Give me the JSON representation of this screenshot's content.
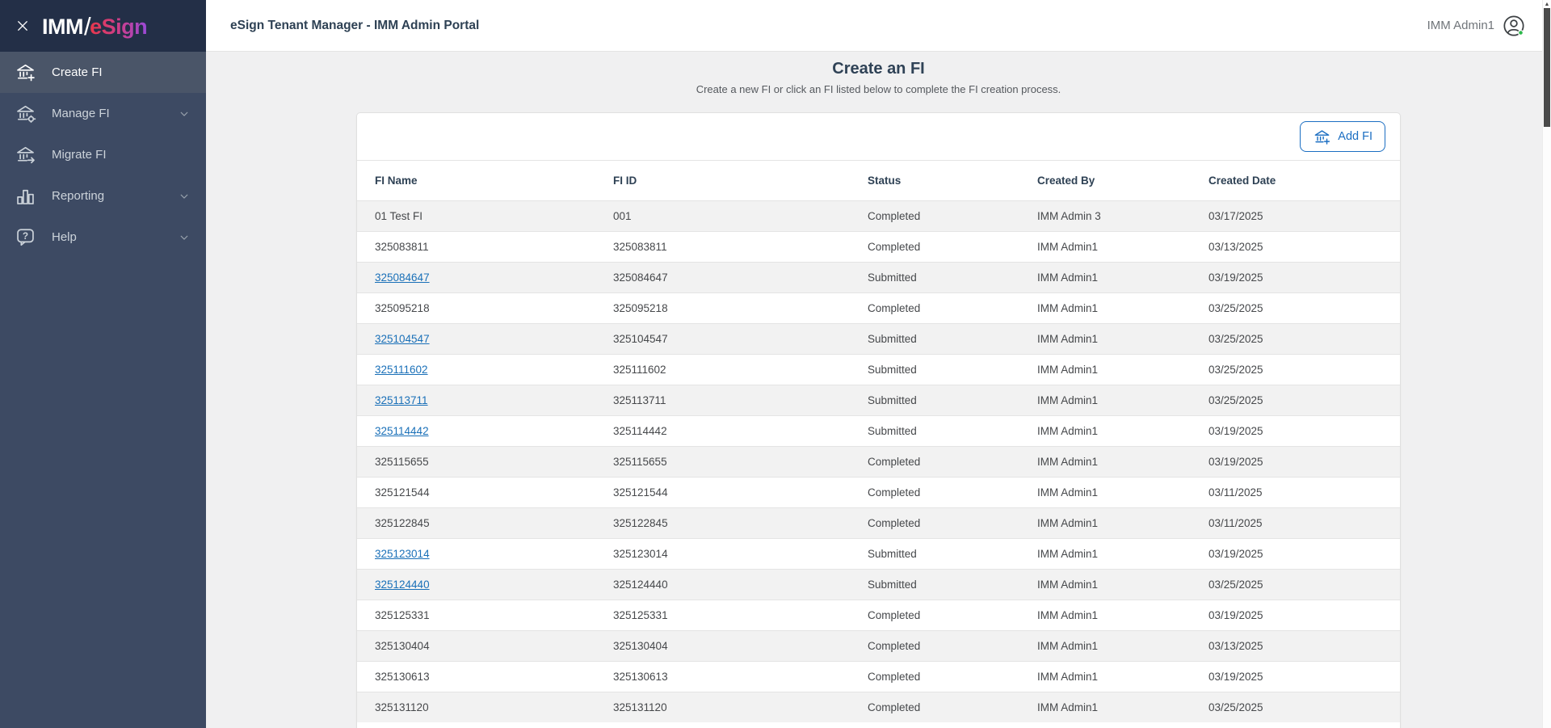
{
  "sidebar": {
    "logo": {
      "imm": "IMM",
      "slash": "/",
      "esign": "eSign"
    },
    "items": [
      {
        "label": "Create FI",
        "icon": "bank-plus-icon",
        "active": true,
        "expandable": false
      },
      {
        "label": "Manage FI",
        "icon": "bank-gear-icon",
        "active": false,
        "expandable": true
      },
      {
        "label": "Migrate FI",
        "icon": "bank-arrow-icon",
        "active": false,
        "expandable": false
      },
      {
        "label": "Reporting",
        "icon": "bar-chart-icon",
        "active": false,
        "expandable": true
      },
      {
        "label": "Help",
        "icon": "help-bubble-icon",
        "active": false,
        "expandable": true
      }
    ]
  },
  "header": {
    "title": "eSign Tenant Manager - IMM Admin Portal",
    "user_name": "IMM Admin1"
  },
  "main": {
    "page_title": "Create an FI",
    "page_subtitle": "Create a new FI or click an FI listed below to complete the FI creation process.",
    "add_fi_button": "Add FI",
    "table": {
      "columns": [
        "FI Name",
        "FI ID",
        "Status",
        "Created By",
        "Created Date"
      ],
      "rows": [
        {
          "fi_name": "01 Test FI",
          "fi_id": "001",
          "status": "Completed",
          "created_by": "IMM Admin 3",
          "created_date": "03/17/2025",
          "link": false
        },
        {
          "fi_name": "325083811",
          "fi_id": "325083811",
          "status": "Completed",
          "created_by": "IMM Admin1",
          "created_date": "03/13/2025",
          "link": false
        },
        {
          "fi_name": "325084647",
          "fi_id": "325084647",
          "status": "Submitted",
          "created_by": "IMM Admin1",
          "created_date": "03/19/2025",
          "link": true
        },
        {
          "fi_name": "325095218",
          "fi_id": "325095218",
          "status": "Completed",
          "created_by": "IMM Admin1",
          "created_date": "03/25/2025",
          "link": false
        },
        {
          "fi_name": "325104547",
          "fi_id": "325104547",
          "status": "Submitted",
          "created_by": "IMM Admin1",
          "created_date": "03/25/2025",
          "link": true
        },
        {
          "fi_name": "325111602",
          "fi_id": "325111602",
          "status": "Submitted",
          "created_by": "IMM Admin1",
          "created_date": "03/25/2025",
          "link": true
        },
        {
          "fi_name": "325113711",
          "fi_id": "325113711",
          "status": "Submitted",
          "created_by": "IMM Admin1",
          "created_date": "03/25/2025",
          "link": true
        },
        {
          "fi_name": "325114442",
          "fi_id": "325114442",
          "status": "Submitted",
          "created_by": "IMM Admin1",
          "created_date": "03/19/2025",
          "link": true
        },
        {
          "fi_name": "325115655",
          "fi_id": "325115655",
          "status": "Completed",
          "created_by": "IMM Admin1",
          "created_date": "03/19/2025",
          "link": false
        },
        {
          "fi_name": "325121544",
          "fi_id": "325121544",
          "status": "Completed",
          "created_by": "IMM Admin1",
          "created_date": "03/11/2025",
          "link": false
        },
        {
          "fi_name": "325122845",
          "fi_id": "325122845",
          "status": "Completed",
          "created_by": "IMM Admin1",
          "created_date": "03/11/2025",
          "link": false
        },
        {
          "fi_name": "325123014",
          "fi_id": "325123014",
          "status": "Submitted",
          "created_by": "IMM Admin1",
          "created_date": "03/19/2025",
          "link": true
        },
        {
          "fi_name": "325124440",
          "fi_id": "325124440",
          "status": "Submitted",
          "created_by": "IMM Admin1",
          "created_date": "03/25/2025",
          "link": true
        },
        {
          "fi_name": "325125331",
          "fi_id": "325125331",
          "status": "Completed",
          "created_by": "IMM Admin1",
          "created_date": "03/19/2025",
          "link": false
        },
        {
          "fi_name": "325130404",
          "fi_id": "325130404",
          "status": "Completed",
          "created_by": "IMM Admin1",
          "created_date": "03/13/2025",
          "link": false
        },
        {
          "fi_name": "325130613",
          "fi_id": "325130613",
          "status": "Completed",
          "created_by": "IMM Admin1",
          "created_date": "03/19/2025",
          "link": false
        },
        {
          "fi_name": "325131120",
          "fi_id": "325131120",
          "status": "Completed",
          "created_by": "IMM Admin1",
          "created_date": "03/25/2025",
          "link": false
        }
      ]
    }
  },
  "colors": {
    "sidebar_bg": "#3d4a63",
    "sidebar_header_bg": "#232f47",
    "sidebar_active_item_bg": "#4a5568",
    "accent_blue": "#1b6ec2",
    "link_blue": "#1a70b8",
    "row_stripe": "#f2f2f2",
    "heading_navy": "#2f4256",
    "logo_gradient_start": "#e8374a",
    "logo_gradient_end": "#9a4ad8",
    "online_status_green": "#2db84b"
  }
}
